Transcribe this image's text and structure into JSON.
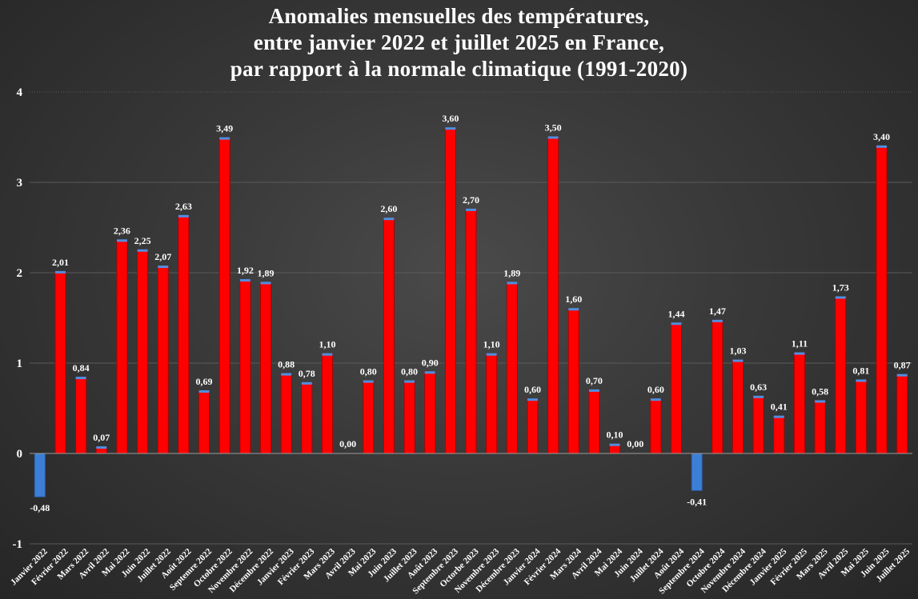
{
  "chart_data": {
    "type": "bar",
    "title": "Anomalies mensuelles des températures,\nentre janvier 2022 et juillet 2025 en France,\npar rapport à la normale climatique (1991-2020)",
    "title_lines": [
      "Anomalies mensuelles des températures,",
      "entre janvier 2022 et juillet 2025 en France,",
      "par rapport à la normale climatique (1991-2020)"
    ],
    "xlabel": "",
    "ylabel": "",
    "ylim": [
      -1,
      4
    ],
    "yticks": [
      "-1",
      "0",
      "1",
      "2",
      "3",
      "4"
    ],
    "grid": true,
    "legend": "none",
    "colors": {
      "positive": "#ff0000",
      "negative": "#3d7fd6",
      "cap": "#4f8fe0",
      "background": "#3a3a3a"
    },
    "categories": [
      "Janvier 2022",
      "Février 2022",
      "Mars 2022",
      "Avril 2022",
      "Mai 2022",
      "Juin 2022",
      "Juillet 2022",
      "Août 2022",
      "Septemre 2022",
      "Octobre 2022",
      "Novembre 2022",
      "Décembre 2022",
      "Janvier 2023",
      "Février 2023",
      "Mars 2023",
      "Avril 2023",
      "Mai 2023",
      "Juin 2023",
      "Juillet 2023",
      "Août 2023",
      "Septembre 2023",
      "Octorbe 2023",
      "Novembre 2023",
      "Décembre 2023",
      "Janvier 2024",
      "Février 2024",
      "Mars 2024",
      "Avril 2024",
      "Mai 2024",
      "Juin 2024",
      "Juillet 2024",
      "Août 2024",
      "Septembre 2024",
      "Octobre 2024",
      "Novembre 2024",
      "Décembre 2024",
      "Janvier 2025",
      "Février 2025",
      "Mars 2025",
      "Avril 2025",
      "Mai 2025",
      "Juin 2025",
      "Juillet 2025"
    ],
    "values": [
      -0.48,
      2.01,
      0.84,
      0.07,
      2.36,
      2.25,
      2.07,
      2.63,
      0.69,
      3.49,
      1.92,
      1.89,
      0.88,
      0.78,
      1.1,
      0.0,
      0.8,
      2.6,
      0.8,
      0.9,
      3.6,
      2.7,
      1.1,
      1.89,
      0.6,
      3.5,
      1.6,
      0.7,
      0.1,
      0.0,
      0.6,
      1.44,
      -0.41,
      1.47,
      1.03,
      0.63,
      0.41,
      1.11,
      0.58,
      1.73,
      0.81,
      3.4,
      0.87
    ],
    "data_labels": [
      "-0,48",
      "2,01",
      "0,84",
      "0,07",
      "2,36",
      "2,25",
      "2,07",
      "2,63",
      "0,69",
      "3,49",
      "1,92",
      "1,89",
      "0,88",
      "0,78",
      "1,10",
      "0,00",
      "0,80",
      "2,60",
      "0,80",
      "0,90",
      "3,60",
      "2,70",
      "1,10",
      "1,89",
      "0,60",
      "3,50",
      "1,60",
      "0,70",
      "0,10",
      "0,00",
      "0,60",
      "1,44",
      "-0,41",
      "1,47",
      "1,03",
      "0,63",
      "0,41",
      "1,11",
      "0,58",
      "1,73",
      "0,81",
      "3,40",
      "0,87"
    ]
  }
}
